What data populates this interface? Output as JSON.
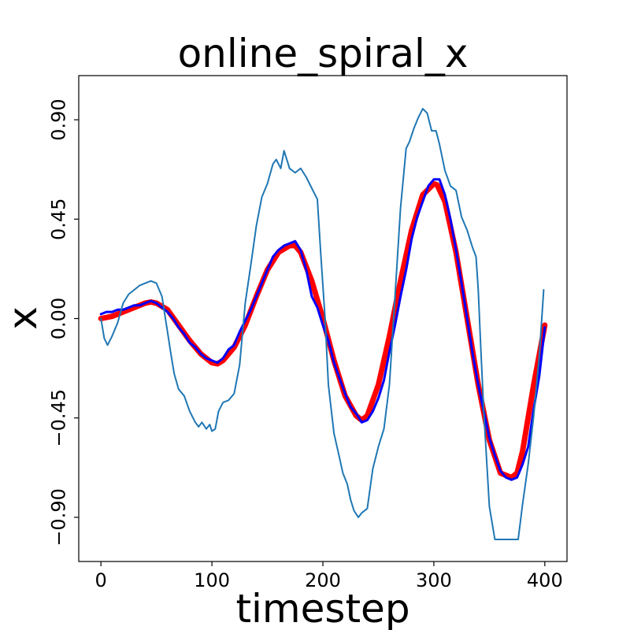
{
  "chart_data": {
    "type": "line",
    "title": "online_spiral_x",
    "xlabel": "timestep",
    "ylabel": "x",
    "xlim": [
      -20,
      420
    ],
    "ylim": [
      -1.1,
      1.1
    ],
    "x_ticks": [
      0,
      100,
      200,
      300,
      400
    ],
    "x_tick_labels": [
      "0",
      "100",
      "200",
      "300",
      "400"
    ],
    "y_ticks": [
      -0.9,
      -0.45,
      0.0,
      0.45,
      0.9
    ],
    "y_tick_labels": [
      "−0.90",
      "−0.45",
      "0.00",
      "0.45",
      "0.90"
    ],
    "grid": false,
    "legend": "none",
    "series": [
      {
        "color": "#ff0000",
        "x": [
          0,
          10,
          20,
          30,
          40,
          45,
          50,
          60,
          70,
          80,
          90,
          100,
          105,
          110,
          120,
          130,
          140,
          150,
          160,
          170,
          175,
          180,
          190,
          200,
          210,
          220,
          230,
          235,
          240,
          250,
          260,
          270,
          280,
          290,
          300,
          303,
          310,
          320,
          330,
          340,
          350,
          360,
          370,
          375,
          380,
          390,
          400
        ],
        "y": [
          0.0,
          0.01,
          0.03,
          0.05,
          0.07,
          0.075,
          0.07,
          0.04,
          -0.03,
          -0.1,
          -0.16,
          -0.2,
          -0.205,
          -0.19,
          -0.13,
          -0.03,
          0.1,
          0.22,
          0.3,
          0.33,
          0.33,
          0.3,
          0.17,
          0.0,
          -0.19,
          -0.35,
          -0.44,
          -0.46,
          -0.44,
          -0.3,
          -0.08,
          0.17,
          0.4,
          0.56,
          0.61,
          0.605,
          0.53,
          0.3,
          0.0,
          -0.3,
          -0.55,
          -0.7,
          -0.72,
          -0.7,
          -0.6,
          -0.3,
          -0.03
        ]
      },
      {
        "color": "#0000ff",
        "x": [
          0,
          5,
          10,
          15,
          20,
          25,
          30,
          35,
          40,
          45,
          50,
          55,
          60,
          65,
          70,
          75,
          80,
          85,
          90,
          95,
          100,
          105,
          110,
          115,
          120,
          125,
          130,
          135,
          140,
          145,
          150,
          155,
          160,
          165,
          170,
          175,
          180,
          185,
          190,
          195,
          200,
          205,
          210,
          215,
          220,
          225,
          230,
          235,
          240,
          245,
          250,
          255,
          260,
          265,
          270,
          275,
          280,
          285,
          290,
          295,
          300,
          305,
          310,
          315,
          320,
          325,
          330,
          335,
          340,
          345,
          350,
          355,
          360,
          365,
          370,
          375,
          380,
          385,
          390,
          395,
          400
        ],
        "y": [
          0.02,
          0.03,
          0.03,
          0.04,
          0.04,
          0.05,
          0.06,
          0.06,
          0.07,
          0.08,
          0.07,
          0.05,
          0.03,
          0.0,
          -0.04,
          -0.07,
          -0.11,
          -0.13,
          -0.16,
          -0.18,
          -0.19,
          -0.2,
          -0.18,
          -0.14,
          -0.12,
          -0.06,
          -0.01,
          0.04,
          0.1,
          0.16,
          0.22,
          0.28,
          0.31,
          0.33,
          0.34,
          0.35,
          0.31,
          0.22,
          0.1,
          0.05,
          -0.03,
          -0.1,
          -0.2,
          -0.27,
          -0.34,
          -0.4,
          -0.43,
          -0.47,
          -0.46,
          -0.42,
          -0.36,
          -0.28,
          -0.15,
          -0.03,
          0.1,
          0.22,
          0.36,
          0.46,
          0.53,
          0.6,
          0.63,
          0.63,
          0.56,
          0.45,
          0.31,
          0.16,
          0.0,
          -0.16,
          -0.3,
          -0.42,
          -0.54,
          -0.62,
          -0.69,
          -0.72,
          -0.73,
          -0.72,
          -0.66,
          -0.58,
          -0.41,
          -0.26,
          -0.04
        ]
      },
      {
        "color": "#1f77b4",
        "x": [
          0,
          3,
          6,
          10,
          15,
          20,
          25,
          30,
          35,
          40,
          45,
          50,
          55,
          60,
          63,
          66,
          70,
          75,
          80,
          85,
          88,
          91,
          95,
          98,
          100,
          103,
          106,
          110,
          115,
          120,
          125,
          130,
          135,
          140,
          145,
          150,
          155,
          158,
          162,
          165,
          170,
          175,
          180,
          185,
          190,
          195,
          198,
          202,
          205,
          210,
          215,
          218,
          222,
          225,
          228,
          232,
          235,
          240,
          245,
          250,
          255,
          260,
          265,
          270,
          275,
          278,
          282,
          286,
          290,
          294,
          298,
          302,
          305,
          310,
          315,
          320,
          325,
          330,
          335,
          338,
          340,
          342,
          345,
          350,
          355,
          360,
          365,
          370,
          373,
          376,
          380,
          385,
          390,
          395,
          399
        ],
        "y": [
          0.0,
          -0.09,
          -0.12,
          -0.08,
          -0.02,
          0.07,
          0.11,
          0.13,
          0.15,
          0.16,
          0.17,
          0.16,
          0.1,
          -0.06,
          -0.16,
          -0.25,
          -0.32,
          -0.35,
          -0.42,
          -0.47,
          -0.49,
          -0.47,
          -0.5,
          -0.48,
          -0.51,
          -0.5,
          -0.42,
          -0.38,
          -0.37,
          -0.34,
          -0.21,
          0.07,
          0.24,
          0.42,
          0.55,
          0.61,
          0.7,
          0.72,
          0.68,
          0.76,
          0.68,
          0.66,
          0.68,
          0.64,
          0.59,
          0.54,
          0.3,
          0.0,
          -0.3,
          -0.52,
          -0.63,
          -0.7,
          -0.75,
          -0.82,
          -0.87,
          -0.9,
          -0.88,
          -0.86,
          -0.68,
          -0.58,
          -0.5,
          -0.3,
          0.1,
          0.5,
          0.77,
          0.8,
          0.86,
          0.91,
          0.95,
          0.93,
          0.85,
          0.85,
          0.79,
          0.67,
          0.6,
          0.58,
          0.46,
          0.4,
          0.32,
          0.28,
          0.13,
          -0.1,
          -0.42,
          -0.85,
          -1.0,
          -1.0,
          -1.0,
          -1.0,
          -1.0,
          -1.0,
          -0.84,
          -0.66,
          -0.44,
          -0.17,
          0.13
        ]
      }
    ]
  }
}
